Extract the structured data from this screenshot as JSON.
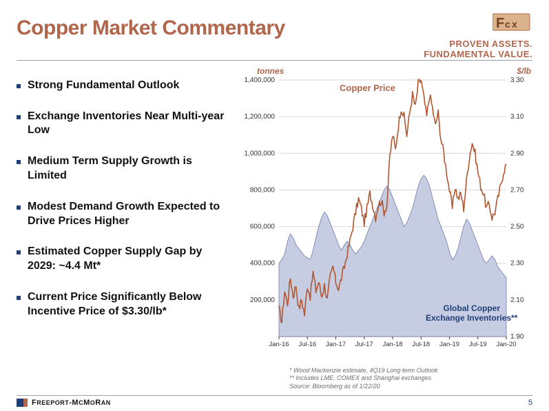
{
  "title": "Copper Market Commentary",
  "logo": {
    "line1": "PROVEN ASSETS.",
    "line2": "FUNDAMENTAL VALUE."
  },
  "bullets": [
    "Strong Fundamental Outlook",
    "Exchange Inventories Near Multi-year Low",
    "Medium Term Supply Growth is Limited",
    "Modest Demand Growth Expected to Drive Prices Higher",
    "Estimated Copper Supply Gap by 2029: ~4.4 Mt*",
    "Current Price Significantly Below Incentive Price of $3.30/lb*"
  ],
  "chart": {
    "left_axis_title": "tonnes",
    "right_axis_title": "$/lb",
    "x_categories": [
      "Jan-16",
      "Jul-16",
      "Jan-17",
      "Jul-17",
      "Jan-18",
      "Jul-18",
      "Jan-19",
      "Jul-19",
      "Jan-20"
    ],
    "left_ylim": [
      0,
      1400000
    ],
    "left_ticks": [
      200000,
      400000,
      600000,
      800000,
      1000000,
      1200000,
      1400000
    ],
    "left_tick_labels": [
      "200,000",
      "400,000",
      "600,000",
      "800,000",
      "1,000,000",
      "1,200,000",
      "1,400,000"
    ],
    "right_ylim": [
      1.9,
      3.3
    ],
    "right_ticks": [
      1.9,
      2.1,
      2.3,
      2.5,
      2.7,
      2.9,
      3.1,
      3.3
    ],
    "right_tick_labels": [
      "1.90",
      "2.10",
      "2.30",
      "2.50",
      "2.70",
      "2.90",
      "3.10",
      "3.30"
    ],
    "grid_color": "#d4d7da",
    "axis_color": "#333333",
    "tick_font_size": 10,
    "series_price": {
      "label": "Copper Price",
      "color": "#b1562f",
      "stroke_width": 1.6,
      "values": [
        2.05,
        1.98,
        2.15,
        2.08,
        2.22,
        2.12,
        2.18,
        2.05,
        2.1,
        2.02,
        2.18,
        2.12,
        2.25,
        2.15,
        2.2,
        2.12,
        2.18,
        2.1,
        2.22,
        2.28,
        2.2,
        2.16,
        2.22,
        2.28,
        2.35,
        2.42,
        2.5,
        2.58,
        2.65,
        2.6,
        2.52,
        2.6,
        2.68,
        2.62,
        2.55,
        2.62,
        2.64,
        2.58,
        2.62,
        2.88,
        3.0,
        2.92,
        3.05,
        3.15,
        3.1,
        3.0,
        3.12,
        3.22,
        3.15,
        3.28,
        3.3,
        3.2,
        3.1,
        3.22,
        3.15,
        3.05,
        3.12,
        2.98,
        2.9,
        2.8,
        2.7,
        2.6,
        2.72,
        2.65,
        2.68,
        2.6,
        2.75,
        2.88,
        2.96,
        2.9,
        2.8,
        2.72,
        2.68,
        2.6,
        2.62,
        2.55,
        2.58,
        2.65,
        2.72,
        2.8,
        2.84
      ]
    },
    "series_inventory": {
      "label_line1": "Global Copper",
      "label_line2": "Exchange Inventories**",
      "fill_color": "#c6cde2",
      "stroke_color": "#6f7ba8",
      "stroke_width": 0.8,
      "values": [
        400000,
        420000,
        450000,
        520000,
        560000,
        540000,
        500000,
        480000,
        460000,
        440000,
        430000,
        420000,
        470000,
        540000,
        600000,
        650000,
        680000,
        660000,
        620000,
        580000,
        540000,
        500000,
        470000,
        500000,
        520000,
        500000,
        470000,
        450000,
        470000,
        490000,
        520000,
        560000,
        600000,
        640000,
        680000,
        720000,
        760000,
        800000,
        820000,
        800000,
        760000,
        720000,
        680000,
        640000,
        600000,
        620000,
        660000,
        700000,
        760000,
        820000,
        860000,
        880000,
        860000,
        820000,
        760000,
        700000,
        640000,
        600000,
        560000,
        520000,
        460000,
        420000,
        440000,
        480000,
        540000,
        600000,
        640000,
        620000,
        580000,
        540000,
        500000,
        460000,
        420000,
        400000,
        420000,
        440000,
        420000,
        380000,
        360000,
        340000,
        320000
      ]
    }
  },
  "notes": [
    "* Wood Mackenzie estimate, 4Q19 Long-term Outlook",
    "** Includes LME, COMEX and Shanghai exchanges",
    "Source: Bloomberg as of 1/22/20"
  ],
  "footer": {
    "brand_name": "FREEPORT-McMoRAN",
    "page_number": "5"
  }
}
